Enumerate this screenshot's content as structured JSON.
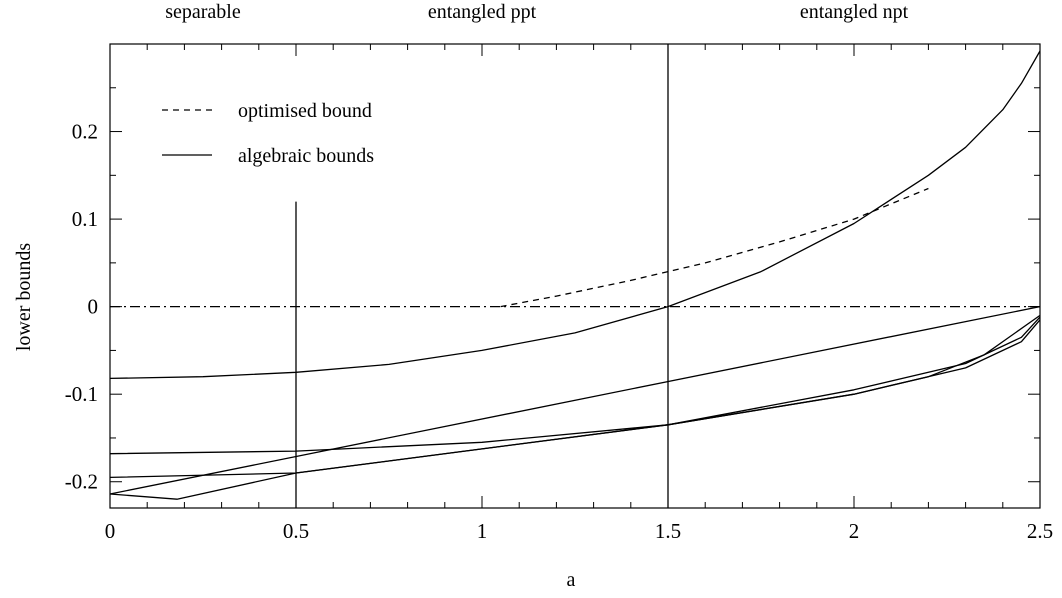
{
  "chart_data": {
    "type": "line",
    "xlabel": "a",
    "ylabel": "lower bounds",
    "xlim": [
      0,
      2.5
    ],
    "ylim": [
      -0.23,
      0.3
    ],
    "xticks": [
      0,
      0.5,
      1,
      1.5,
      2,
      2.5
    ],
    "xtick_labels": [
      "0",
      "0.5",
      "1",
      "1.5",
      "2",
      "2.5"
    ],
    "yticks": [
      -0.2,
      -0.1,
      0,
      0.1,
      0.2
    ],
    "ytick_labels": [
      "-0.2",
      "-0.1",
      "0",
      "0.1",
      "0.2"
    ],
    "grid": false,
    "legend_position": "top-left",
    "region_labels": [
      {
        "text": "separable",
        "x": 0.25
      },
      {
        "text": "entangled ppt",
        "x": 1.0
      },
      {
        "text": "entangled npt",
        "x": 2.0
      }
    ],
    "vertical_lines": [
      {
        "x": 0.5,
        "y_top": 0.12
      },
      {
        "x": 1.5,
        "y_top": 0.3
      }
    ],
    "legend": [
      {
        "label": "optimised bound",
        "style": "dashed"
      },
      {
        "label": "algebraic bounds",
        "style": "solid"
      }
    ],
    "series": [
      {
        "style": "dashed",
        "x": [
          1.05,
          1.2,
          1.4,
          1.5,
          1.6,
          1.8,
          2.0,
          2.2
        ],
        "y": [
          0.0,
          0.012,
          0.03,
          0.04,
          0.05,
          0.074,
          0.1,
          0.135
        ]
      },
      {
        "style": "dashdot",
        "x": [
          0,
          2.5
        ],
        "y": [
          0,
          0
        ]
      },
      {
        "style": "solid",
        "x": [
          0,
          0.25,
          0.5,
          0.75,
          1.0,
          1.25,
          1.5,
          1.75,
          2.0,
          2.2,
          2.3,
          2.4,
          2.45,
          2.5
        ],
        "y": [
          -0.082,
          -0.08,
          -0.075,
          -0.066,
          -0.05,
          -0.03,
          0.0,
          0.04,
          0.095,
          0.15,
          0.182,
          0.225,
          0.255,
          0.292
        ]
      },
      {
        "style": "solid",
        "x": [
          0,
          2.5
        ],
        "y": [
          -0.214,
          0.0
        ]
      },
      {
        "style": "solid",
        "x": [
          0,
          0.18,
          0.5,
          1.5,
          2.0,
          2.3,
          2.45,
          2.5
        ],
        "y": [
          -0.214,
          -0.22,
          -0.19,
          -0.135,
          -0.1,
          -0.07,
          -0.04,
          -0.015
        ]
      },
      {
        "style": "solid",
        "x": [
          0,
          0.5,
          1.5,
          2.0,
          2.3,
          2.45,
          2.5
        ],
        "y": [
          -0.195,
          -0.19,
          -0.135,
          -0.095,
          -0.065,
          -0.035,
          -0.012
        ]
      },
      {
        "style": "solid",
        "x": [
          0,
          0.5,
          1.0,
          1.5,
          2.0,
          2.2,
          2.35,
          2.5
        ],
        "y": [
          -0.168,
          -0.165,
          -0.155,
          -0.135,
          -0.1,
          -0.08,
          -0.055,
          -0.01
        ]
      }
    ]
  }
}
